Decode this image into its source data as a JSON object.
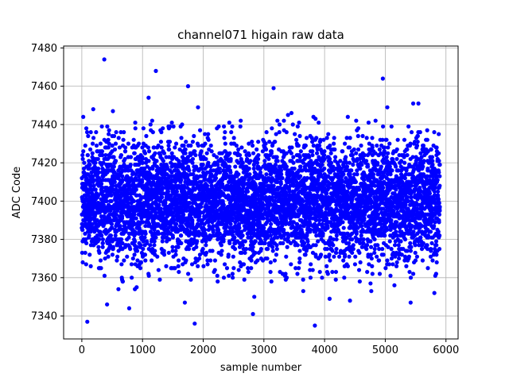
{
  "chart_data": {
    "type": "scatter",
    "title": "channel071 higain raw data",
    "xlabel": "sample number",
    "ylabel": "ADC Code",
    "xlim": [
      -300,
      6200
    ],
    "ylim": [
      7328,
      7481
    ],
    "x_ticks": [
      0,
      1000,
      2000,
      3000,
      4000,
      5000,
      6000
    ],
    "y_ticks": [
      7340,
      7360,
      7380,
      7400,
      7420,
      7440,
      7460,
      7480
    ],
    "grid": true,
    "marker_color": "#0000ff",
    "series": [
      {
        "n_points": 5900,
        "x_range": [
          0,
          5900
        ],
        "center": 7400,
        "core_band": [
          7370,
          7430
        ],
        "noise_sigma": 15.5,
        "outliers": [
          [
            370,
            7474
          ],
          [
            1220,
            7468
          ],
          [
            1750,
            7460
          ],
          [
            4960,
            7464
          ],
          [
            1860,
            7336
          ],
          [
            2820,
            7341
          ],
          [
            3840,
            7335
          ],
          [
            90,
            7337
          ],
          [
            1100,
            7454
          ],
          [
            3160,
            7459
          ],
          [
            5460,
            7451
          ],
          [
            780,
            7344
          ]
        ]
      }
    ]
  }
}
